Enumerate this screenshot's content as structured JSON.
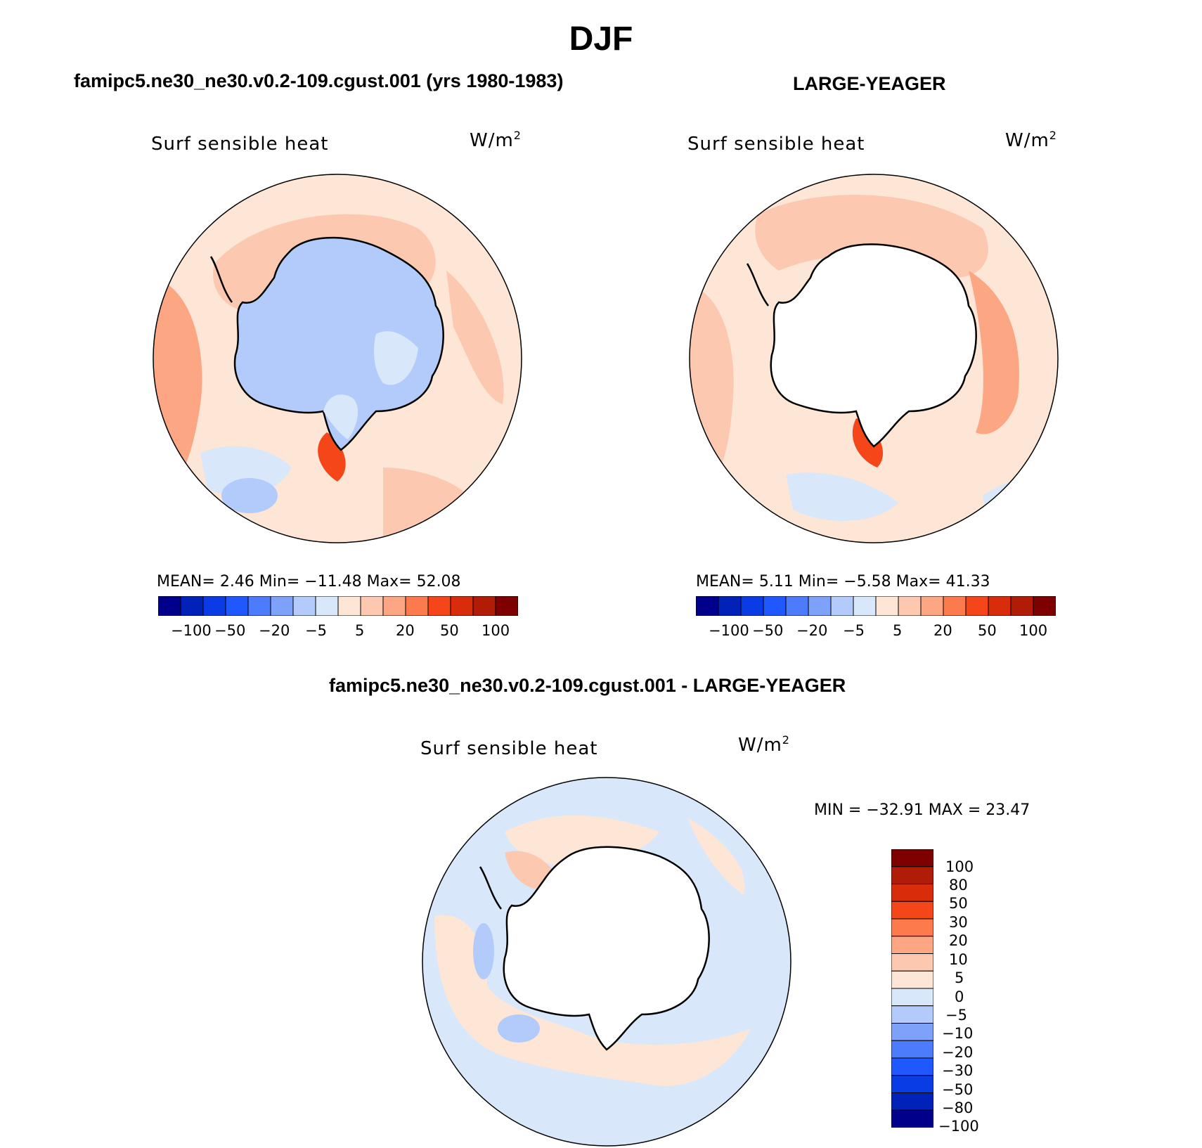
{
  "title": "DJF",
  "colors": [
    "#00008b",
    "#0022b8",
    "#0a3ce6",
    "#2058ff",
    "#4c7cfc",
    "#7ea2fa",
    "#b3cbfa",
    "#d8e8fa",
    "#fde6d6",
    "#fcc8b0",
    "#fca684",
    "#fc7a4c",
    "#f5461a",
    "#d92c0a",
    "#b01c06",
    "#7e0000"
  ],
  "panels": [
    {
      "id": "model",
      "title": "famipc5.ne30_ne30.v0.2-109.cgust.001 (yrs 1980-1983)",
      "variable": "Surf sensible heat",
      "units_text": "W/m",
      "units_sup": "2",
      "stats_text": "MEAN=    2.46   Min=  −11.48    Max=   52.08",
      "colorbar_ticks": [
        "−100",
        "−50",
        "−20",
        "−5",
        "5",
        "20",
        "50",
        "100"
      ]
    },
    {
      "id": "obs",
      "title": "LARGE-YEAGER",
      "variable": "Surf sensible heat",
      "units_text": "W/m",
      "units_sup": "2",
      "stats_text": "MEAN=     5.11   Min=   −5.58   Max=   41.33",
      "colorbar_ticks": [
        "−100",
        "−50",
        "−20",
        "−5",
        "5",
        "20",
        "50",
        "100"
      ]
    },
    {
      "id": "diff",
      "title": "famipc5.ne30_ne30.v0.2-109.cgust.001 - LARGE-YEAGER",
      "variable": "Surf sensible heat",
      "units_text": "W/m",
      "units_sup": "2",
      "stats_text": "MIN  =  −32.91  MAX  =    23.47",
      "colorbar_ticks": [
        "100",
        "80",
        "50",
        "30",
        "20",
        "10",
        "5",
        "0",
        "−5",
        "−10",
        "−20",
        "−30",
        "−50",
        "−80",
        "−100"
      ]
    }
  ]
}
